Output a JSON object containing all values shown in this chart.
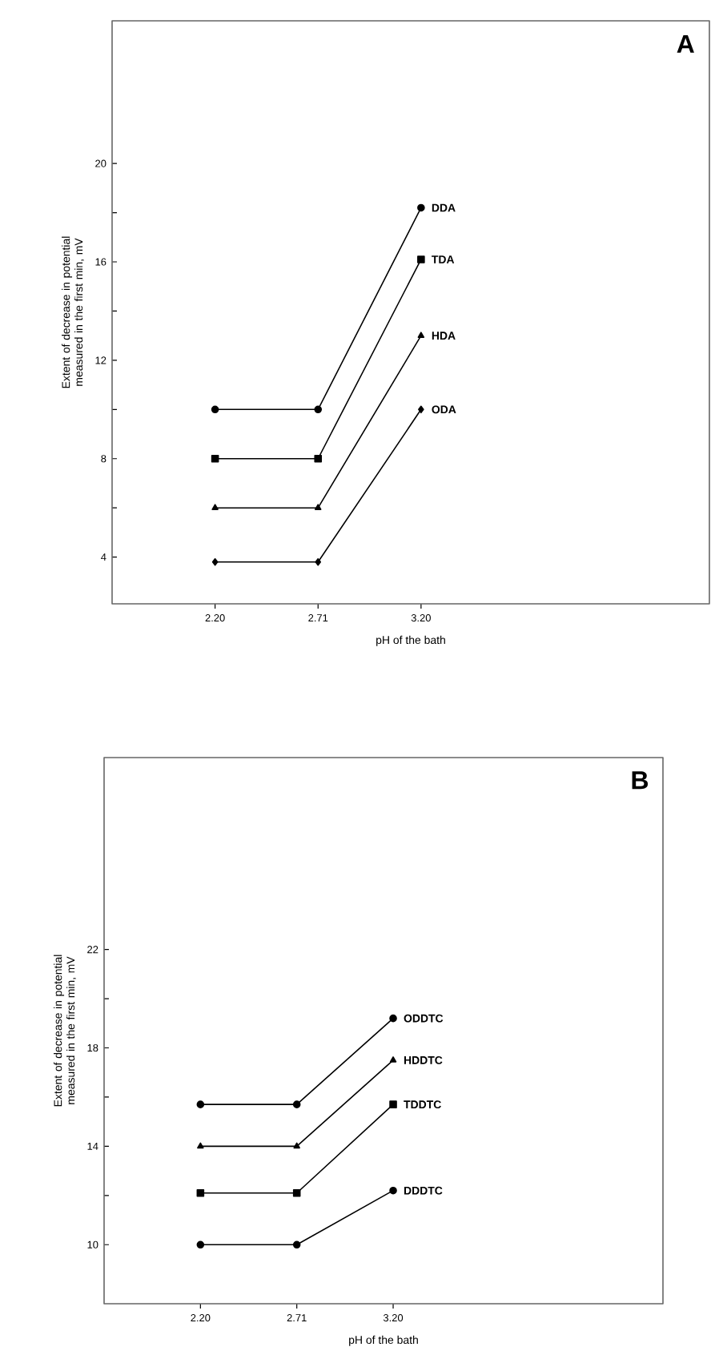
{
  "chart_data": [
    {
      "type": "line",
      "xlabel": "pH of the bath",
      "ylabel": "Extent of decrease in potential measured in the first min, mV",
      "annotations": [
        "A"
      ],
      "categories": [
        "2.20",
        "2.71",
        "3.20"
      ],
      "ylim": [
        2.1,
        25.8
      ],
      "yticks": [
        4,
        8,
        12,
        16,
        20
      ],
      "grid": false,
      "legend": false,
      "line_style": "solid",
      "series": [
        {
          "name": "DDA",
          "color": "#000000",
          "marker": "circle",
          "values": [
            10,
            10,
            18.2
          ]
        },
        {
          "name": "TDA",
          "color": "#000000",
          "marker": "square",
          "values": [
            8,
            8,
            16.1
          ]
        },
        {
          "name": "HDA",
          "color": "#000000",
          "marker": "triangle",
          "values": [
            6,
            6,
            13
          ]
        },
        {
          "name": "ODA",
          "color": "#000000",
          "marker": "diamond",
          "values": [
            3.8,
            3.8,
            10
          ]
        }
      ]
    },
    {
      "type": "line",
      "xlabel": "pH of the bath",
      "ylabel": "Extent of decrease in potential measured in the first min, mV",
      "annotations": [
        "B"
      ],
      "categories": [
        "2.20",
        "2.71",
        "3.20"
      ],
      "ylim": [
        7.6,
        29.8
      ],
      "yticks": [
        10,
        14,
        18,
        22
      ],
      "grid": false,
      "legend": false,
      "line_style": "solid",
      "series": [
        {
          "name": "ODDTC",
          "color": "#000000",
          "marker": "circle",
          "values": [
            15.7,
            15.7,
            19.2
          ]
        },
        {
          "name": "HDDTC",
          "color": "#000000",
          "marker": "triangle",
          "values": [
            14,
            14,
            17.5
          ]
        },
        {
          "name": "TDDTC",
          "color": "#000000",
          "marker": "square",
          "values": [
            12.1,
            12.1,
            15.7
          ]
        },
        {
          "name": "DDDTC",
          "color": "#000000",
          "marker": "circle",
          "values": [
            10,
            10,
            12.2
          ]
        }
      ]
    }
  ]
}
